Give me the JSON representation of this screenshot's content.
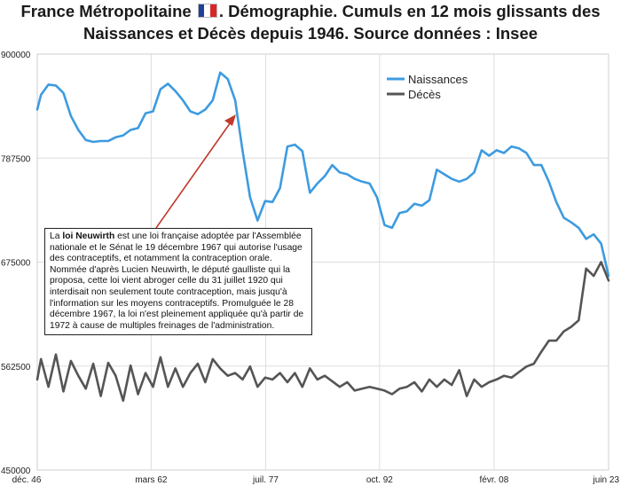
{
  "title_line1_a": "France Métropolitaine",
  "title_line1_b": ". Démographie. Cumuls en 12 mois glissants des",
  "title_line2": "Naissances et Décès depuis 1946. Source données : Insee",
  "flag_icon": "french-flag",
  "colors": {
    "births": "#3d9be0",
    "deaths": "#555555",
    "arrow": "#c0392b",
    "grid": "#dddddd"
  },
  "annotation": {
    "prefix": "La ",
    "bold": "loi Neuwirth",
    "text": " est une loi française adoptée par l'Assemblée nationale et le Sénat le 19 décembre 1967 qui autorise l'usage des contraceptifs, et notamment la contraception orale. Nommée d'après Lucien Neuwirth, le député gaulliste qui la proposa, cette loi vient abroger celle du 31 juillet 1920 qui interdisait non seulement toute contraception, mais jusqu'à l'information sur les moyens contraceptifs. Promulguée le 28 décembre 1967, la loi n'est pleinement appliquée qu'à partir de 1972 à cause de multiples freinages de l'administration."
  },
  "chart_data": {
    "type": "line",
    "x_tick_labels": [
      "déc. 46",
      "mars 62",
      "juil. 77",
      "oct. 92",
      "févr. 08",
      "juin 23"
    ],
    "x_ticks": [
      "1946-12",
      "1962-03",
      "1977-07",
      "1992-10",
      "2008-02",
      "2023-06"
    ],
    "y_tick_labels": [
      "450000",
      "562500",
      "675000",
      "787500",
      "900000"
    ],
    "ylim": [
      450000,
      900000
    ],
    "xlim": [
      "1946-12",
      "2023-06"
    ],
    "legend_position": "top-right",
    "grid": true,
    "series": [
      {
        "name": "Naissances",
        "x": [
          "1946-12",
          "1947-06",
          "1948-06",
          "1949-06",
          "1950-06",
          "1951-06",
          "1952-06",
          "1953-06",
          "1954-06",
          "1955-06",
          "1956-06",
          "1957-06",
          "1958-06",
          "1959-06",
          "1960-06",
          "1961-06",
          "1962-06",
          "1963-06",
          "1964-06",
          "1965-06",
          "1966-06",
          "1967-06",
          "1968-06",
          "1969-06",
          "1970-06",
          "1971-06",
          "1972-06",
          "1973-06",
          "1974-06",
          "1975-06",
          "1976-06",
          "1977-06",
          "1978-06",
          "1979-06",
          "1980-06",
          "1981-06",
          "1982-06",
          "1983-06",
          "1984-06",
          "1985-06",
          "1986-06",
          "1987-06",
          "1988-06",
          "1989-06",
          "1990-06",
          "1991-06",
          "1992-06",
          "1993-06",
          "1994-06",
          "1995-06",
          "1996-06",
          "1997-06",
          "1998-06",
          "1999-06",
          "2000-06",
          "2001-06",
          "2002-06",
          "2003-06",
          "2004-06",
          "2005-06",
          "2006-06",
          "2007-06",
          "2008-06",
          "2009-06",
          "2010-06",
          "2011-06",
          "2012-06",
          "2013-06",
          "2014-06",
          "2015-06",
          "2016-06",
          "2017-06",
          "2018-06",
          "2019-06",
          "2020-06",
          "2021-06",
          "2022-06",
          "2023-06"
        ],
        "values": [
          840000,
          856000,
          867000,
          866000,
          858000,
          833000,
          818000,
          807000,
          805000,
          806000,
          806000,
          810000,
          812000,
          818000,
          820000,
          836000,
          838000,
          862000,
          868000,
          860000,
          850000,
          838000,
          835000,
          840000,
          850000,
          880000,
          873000,
          850000,
          795000,
          745000,
          720000,
          741000,
          740000,
          755000,
          800000,
          802000,
          795000,
          750000,
          760000,
          768000,
          780000,
          772000,
          770000,
          765000,
          762000,
          760000,
          745000,
          715000,
          712000,
          728000,
          730000,
          738000,
          736000,
          742000,
          775000,
          770000,
          765000,
          762000,
          765000,
          772000,
          796000,
          790000,
          796000,
          793000,
          800000,
          798000,
          793000,
          780000,
          780000,
          762000,
          740000,
          723000,
          718000,
          712000,
          700000,
          705000,
          695000,
          660000
        ]
      },
      {
        "name": "Décès",
        "x": [
          "1946-12",
          "1947-06",
          "1948-06",
          "1949-06",
          "1950-06",
          "1951-06",
          "1952-06",
          "1953-06",
          "1954-06",
          "1955-06",
          "1956-06",
          "1957-06",
          "1958-06",
          "1959-06",
          "1960-06",
          "1961-06",
          "1962-06",
          "1963-06",
          "1964-06",
          "1965-06",
          "1966-06",
          "1967-06",
          "1968-06",
          "1969-06",
          "1970-06",
          "1971-06",
          "1972-06",
          "1973-06",
          "1974-06",
          "1975-06",
          "1976-06",
          "1977-06",
          "1978-06",
          "1979-06",
          "1980-06",
          "1981-06",
          "1982-06",
          "1983-06",
          "1984-06",
          "1985-06",
          "1986-06",
          "1987-06",
          "1988-06",
          "1989-06",
          "1990-06",
          "1991-06",
          "1992-06",
          "1993-06",
          "1994-06",
          "1995-06",
          "1996-06",
          "1997-06",
          "1998-06",
          "1999-06",
          "2000-06",
          "2001-06",
          "2002-06",
          "2003-06",
          "2004-06",
          "2005-06",
          "2006-06",
          "2007-06",
          "2008-06",
          "2009-06",
          "2010-06",
          "2011-06",
          "2012-06",
          "2013-06",
          "2014-06",
          "2015-06",
          "2016-06",
          "2017-06",
          "2018-06",
          "2019-06",
          "2020-06",
          "2021-06",
          "2022-06",
          "2023-06"
        ],
        "values": [
          548000,
          570000,
          540000,
          575000,
          535000,
          568000,
          552000,
          538000,
          565000,
          530000,
          566000,
          552000,
          525000,
          563000,
          532000,
          555000,
          540000,
          572000,
          540000,
          560000,
          540000,
          555000,
          565000,
          545000,
          570000,
          560000,
          552000,
          555000,
          548000,
          562000,
          540000,
          550000,
          548000,
          555000,
          545000,
          555000,
          540000,
          560000,
          548000,
          552000,
          546000,
          540000,
          545000,
          536000,
          538000,
          540000,
          538000,
          536000,
          532000,
          538000,
          540000,
          545000,
          535000,
          548000,
          540000,
          548000,
          542000,
          558000,
          530000,
          548000,
          540000,
          545000,
          548000,
          552000,
          550000,
          556000,
          562000,
          565000,
          578000,
          590000,
          590000,
          600000,
          605000,
          612000,
          668000,
          660000,
          675000,
          655000
        ]
      }
    ]
  }
}
